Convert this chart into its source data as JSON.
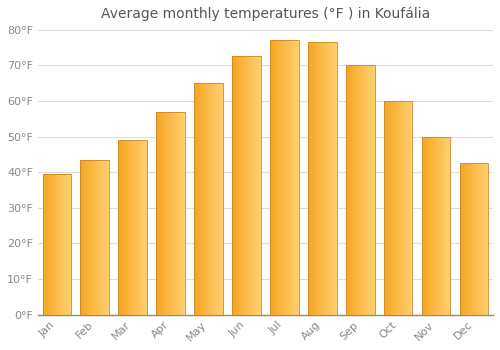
{
  "title": "Average monthly temperatures (°F ) in Koufália",
  "months": [
    "Jan",
    "Feb",
    "Mar",
    "Apr",
    "May",
    "Jun",
    "Jul",
    "Aug",
    "Sep",
    "Oct",
    "Nov",
    "Dec"
  ],
  "values": [
    39.5,
    43.5,
    49.0,
    57.0,
    65.0,
    72.5,
    77.0,
    76.5,
    70.0,
    60.0,
    50.0,
    42.5
  ],
  "bar_color_left": "#F5A623",
  "bar_color_right": "#FFD070",
  "bar_edge_color": "#C8882A",
  "ylim": [
    0,
    80
  ],
  "yticks": [
    0,
    10,
    20,
    30,
    40,
    50,
    60,
    70,
    80
  ],
  "ytick_labels": [
    "0°F",
    "10°F",
    "20°F",
    "30°F",
    "40°F",
    "50°F",
    "60°F",
    "70°F",
    "80°F"
  ],
  "background_color": "#ffffff",
  "grid_color": "#dddddd",
  "title_fontsize": 10,
  "tick_fontsize": 8,
  "bar_width": 0.75
}
